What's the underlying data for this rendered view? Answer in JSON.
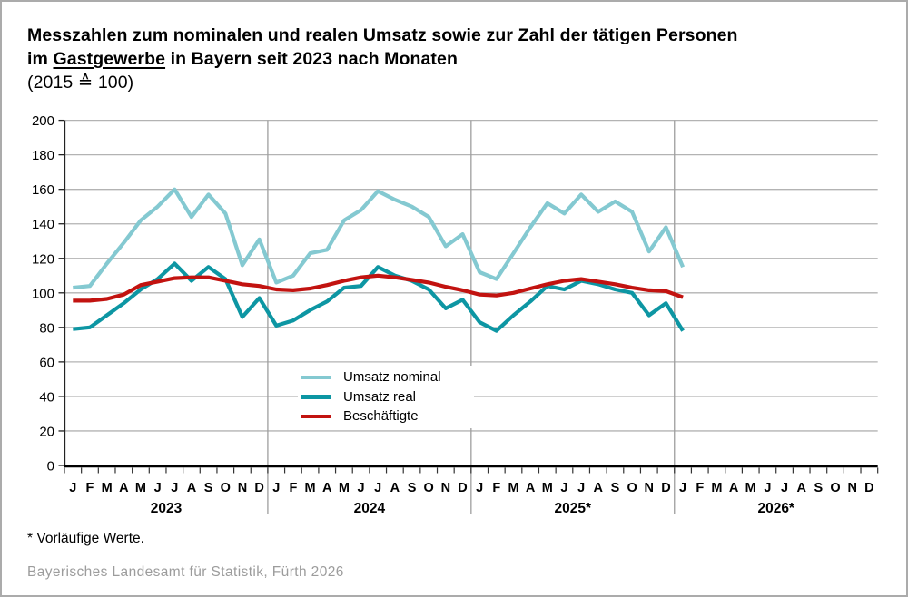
{
  "title": {
    "line1": "Messzahlen zum nominalen und realen Umsatz sowie zur Zahl der tätigen Personen",
    "line2_prefix": "im ",
    "line2_underlined": "Gastgewerbe",
    "line2_suffix": " in Bayern seit 2023 nach Monaten",
    "line3": "(2015 ≙ 100)"
  },
  "legend": [
    {
      "label": "Umsatz nominal",
      "color": "#84C9D1"
    },
    {
      "label": "Umsatz real",
      "color": "#0D96A3"
    },
    {
      "label": "Beschäftigte",
      "color": "#C21310"
    }
  ],
  "footnote": "* Vorläufige Werte.",
  "source": "Bayerisches Landesamt für Statistik, Fürth 2026",
  "chart_data": {
    "type": "line",
    "title": "Messzahlen zum nominalen und realen Umsatz sowie zur Zahl der tätigen Personen im Gastgewerbe in Bayern seit 2023 nach Monaten (2015 ≙ 100)",
    "x_start": "Jan 2023",
    "x_end": "Jan 2026",
    "month_letters": [
      "J",
      "F",
      "M",
      "A",
      "M",
      "J",
      "J",
      "A",
      "S",
      "O",
      "N",
      "D"
    ],
    "year_labels": [
      "2023",
      "2024",
      "2025*",
      "2026*"
    ],
    "x_axis_months_shown": 48,
    "data_points_per_series": 37,
    "ylim": [
      0,
      200
    ],
    "y_ticks": [
      0,
      20,
      40,
      60,
      80,
      100,
      120,
      140,
      160,
      180,
      200
    ],
    "grid": true,
    "legend_position": "inside-center-left",
    "series": [
      {
        "name": "Umsatz nominal",
        "color": "#84C9D1",
        "values": [
          103,
          104,
          117,
          129,
          142,
          150,
          160,
          144,
          157,
          146,
          116,
          131,
          106,
          110,
          123,
          125,
          142,
          148,
          159,
          154,
          150,
          144,
          127,
          134,
          112,
          108,
          123,
          138,
          152,
          146,
          157,
          147,
          153,
          147,
          124,
          138,
          115
        ]
      },
      {
        "name": "Umsatz real",
        "color": "#0D96A3",
        "values": [
          79,
          80,
          87,
          94,
          102,
          108,
          117,
          107,
          115,
          108,
          86,
          97,
          81,
          84,
          90,
          95,
          103,
          104,
          115,
          110,
          107,
          102,
          91,
          96,
          83,
          78,
          87,
          95,
          104,
          102,
          107,
          105,
          102,
          100,
          87,
          94,
          78
        ]
      },
      {
        "name": "Beschäftigte",
        "color": "#C21310",
        "values": [
          95.5,
          95.5,
          96.5,
          99,
          104.5,
          106.5,
          108.5,
          109,
          109,
          107,
          105,
          104,
          102,
          101.5,
          102.5,
          104.5,
          107,
          109,
          110,
          109,
          107.5,
          106,
          103.5,
          101.5,
          99,
          98.5,
          100,
          102.5,
          105,
          107,
          108,
          106.5,
          105,
          103,
          101.5,
          101,
          97.5
        ]
      }
    ]
  }
}
